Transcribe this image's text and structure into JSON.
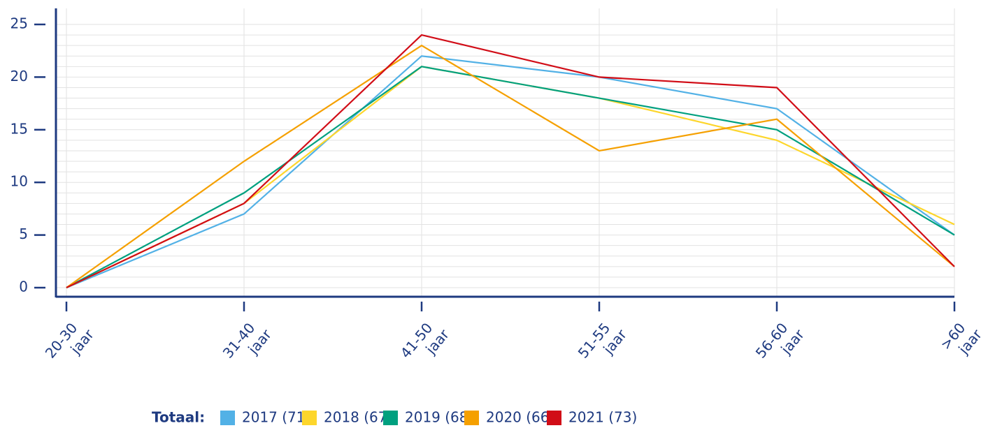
{
  "chart_data": {
    "type": "line",
    "categories": [
      "20-30 jaar",
      "31-40 jaar",
      "41-50 jaar",
      "51-55 jaar",
      "56-60 jaar",
      ">60 jaar"
    ],
    "series": [
      {
        "name": "2017 (71)",
        "color": "#52b1e6",
        "values": [
          0,
          7,
          22,
          20,
          17,
          5
        ]
      },
      {
        "name": "2018 (67)",
        "color": "#fdd62c",
        "values": [
          0,
          8,
          21,
          18,
          14,
          6
        ]
      },
      {
        "name": "2019 (68)",
        "color": "#00a07f",
        "values": [
          0,
          9,
          21,
          18,
          15,
          5
        ]
      },
      {
        "name": "2020 (66)",
        "color": "#f5a000",
        "values": [
          0,
          12,
          23,
          13,
          16,
          2
        ]
      },
      {
        "name": "2021 (73)",
        "color": "#d10d17",
        "values": [
          0,
          8,
          24,
          20,
          19,
          2
        ]
      }
    ],
    "legend_title": "Totaal:",
    "ylim": [
      0,
      25
    ],
    "yticks": [
      0,
      5,
      10,
      15,
      20,
      25
    ],
    "yminorticks": [
      1,
      2,
      3,
      4,
      6,
      7,
      8,
      9,
      11,
      12,
      13,
      14,
      16,
      17,
      18,
      19,
      21,
      22,
      23,
      24
    ],
    "grid": true
  }
}
